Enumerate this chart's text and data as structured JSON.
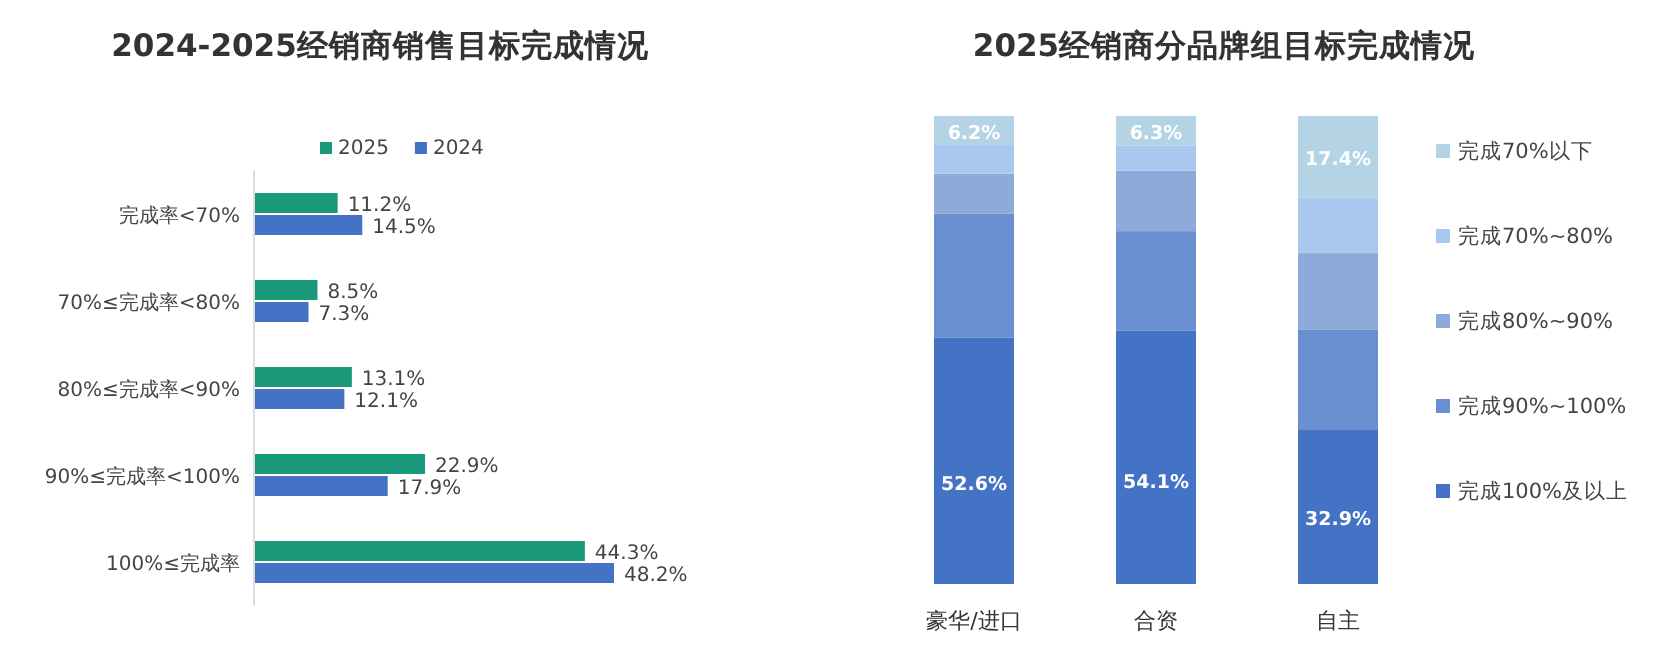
{
  "chart_data": [
    {
      "type": "bar",
      "orientation": "horizontal",
      "title": "2024-2025经销商销售目标完成情况",
      "categories": [
        "完成率<70%",
        "70%≤完成率<80%",
        "80%≤完成率<90%",
        "90%≤完成率<100%",
        "100%≤完成率"
      ],
      "legend": "top",
      "series": [
        {
          "name": "2025",
          "color": "#1a9a7a",
          "values": [
            11.2,
            8.5,
            13.1,
            22.9,
            44.3
          ],
          "value_labels": [
            "11.2%",
            "8.5%",
            "13.1%",
            "22.9%",
            "44.3%"
          ]
        },
        {
          "name": "2024",
          "color": "#4472c4",
          "values": [
            14.5,
            7.3,
            12.1,
            17.9,
            48.2
          ],
          "value_labels": [
            "14.5%",
            "7.3%",
            "12.1%",
            "17.9%",
            "48.2%"
          ]
        }
      ]
    },
    {
      "type": "bar",
      "stacked": true,
      "title": "2025经销商分品牌组目标完成情况",
      "categories": [
        "豪华/进口",
        "合资",
        "自主"
      ],
      "legend": "right",
      "series": [
        {
          "name": "完成100%及以上",
          "color": "#4472c4",
          "values": [
            52.6,
            54.1,
            32.9
          ],
          "value_labels": [
            "52.6%",
            "54.1%",
            "32.9%"
          ]
        },
        {
          "name": "完成90%~100%",
          "color": "#6a8fd0",
          "values": [
            26.5,
            21.3,
            21.4
          ]
        },
        {
          "name": "完成80%~90%",
          "color": "#8eaadb",
          "values": [
            8.6,
            12.9,
            16.4
          ]
        },
        {
          "name": "完成70%~80%",
          "color": "#a9c8ee",
          "values": [
            6.1,
            5.4,
            11.9
          ]
        },
        {
          "name": "完成70%以下",
          "color": "#b4d4e6",
          "values": [
            6.2,
            6.3,
            17.4
          ],
          "value_labels": [
            "6.2%",
            "6.3%",
            "17.4%"
          ]
        }
      ]
    }
  ]
}
